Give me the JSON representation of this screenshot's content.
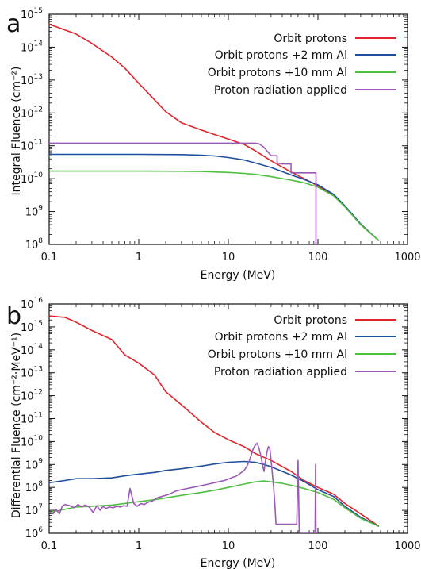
{
  "colors": {
    "orbit": "#e3242b",
    "al2": "#1f4e9c",
    "al10": "#4fbf3f",
    "applied": "#9b59b6",
    "axis": "#111111"
  },
  "panels": [
    {
      "letter": "a",
      "ylabel": "Integral Fluence (cm⁻²)",
      "xlabel": "Energy (MeV)"
    },
    {
      "letter": "b",
      "ylabel": "Differential Fluence (cm⁻²·MeV⁻¹)",
      "xlabel": "Energy (MeV)"
    }
  ],
  "chart_data": [
    {
      "type": "line",
      "xscale": "log",
      "yscale": "log",
      "xlim": [
        0.1,
        1000
      ],
      "ylim": [
        100000000.0,
        1000000000000000.0
      ],
      "xticks": [
        "0.1",
        "1",
        "10",
        "100",
        "1000"
      ],
      "yticks": [
        {
          "base": "10",
          "exp": "8"
        },
        {
          "base": "10",
          "exp": "9"
        },
        {
          "base": "10",
          "exp": "10"
        },
        {
          "base": "10",
          "exp": "11"
        },
        {
          "base": "10",
          "exp": "12"
        },
        {
          "base": "10",
          "exp": "13"
        },
        {
          "base": "10",
          "exp": "14"
        },
        {
          "base": "10",
          "exp": "15"
        }
      ],
      "xlabel": "Energy (MeV)",
      "ylabel": "Integral Fluence (cm⁻²)",
      "legend_position": "top-right",
      "series": [
        {
          "name": "Orbit protons",
          "color_key": "orbit",
          "x": [
            0.1,
            0.2,
            0.3,
            0.5,
            0.7,
            1,
            1.5,
            2,
            3,
            5,
            7,
            10,
            15,
            20,
            30,
            50,
            70,
            100,
            150,
            200,
            300,
            480
          ],
          "y": [
            500000000000000.0,
            250000000000000.0,
            130000000000000.0,
            50000000000000.0,
            23000000000000.0,
            8000000000000.0,
            2500000000000.0,
            1100000000000.0,
            500000000000.0,
            300000000000.0,
            220000000000.0,
            160000000000.0,
            110000000000.0,
            70000000000.0,
            35000000000.0,
            16000000000.0,
            10000000000.0,
            6000000000.0,
            3000000000.0,
            1400000000.0,
            400000000.0,
            130000000.0
          ]
        },
        {
          "name": "Orbit protons +2 mm Al",
          "color_key": "al2",
          "x": [
            0.1,
            1,
            3,
            5,
            7,
            10,
            15,
            20,
            30,
            50,
            70,
            100,
            150,
            200,
            300,
            480
          ],
          "y": [
            55000000000.0,
            55000000000.0,
            54000000000.0,
            52000000000.0,
            49000000000.0,
            44000000000.0,
            37000000000.0,
            30000000000.0,
            22000000000.0,
            13000000000.0,
            9500000000.0,
            6500000000.0,
            3300000000.0,
            1500000000.0,
            420000000.0,
            130000000.0
          ]
        },
        {
          "name": "Orbit protons +10 mm Al",
          "color_key": "al10",
          "x": [
            0.1,
            1,
            3,
            5,
            7,
            10,
            15,
            20,
            30,
            50,
            70,
            100,
            150,
            200,
            300,
            480
          ],
          "y": [
            17000000000.0,
            17000000000.0,
            16800000000.0,
            16500000000.0,
            16000000000.0,
            15500000000.0,
            14500000000.0,
            13500000000.0,
            11500000000.0,
            9000000000.0,
            7500000000.0,
            5500000000.0,
            3000000000.0,
            1400000000.0,
            400000000.0,
            130000000.0
          ]
        },
        {
          "name": "Proton radiation applied",
          "color_key": "applied",
          "x": [
            0.1,
            20,
            22,
            25,
            27,
            30,
            35,
            35,
            40,
            50,
            50,
            60,
            70,
            70,
            80,
            95,
            95
          ],
          "y": [
            120000000000.0,
            120000000000.0,
            115000000000.0,
            90000000000.0,
            70000000000.0,
            50000000000.0,
            50000000000.0,
            30000000000.0,
            28000000000.0,
            28000000000.0,
            15000000000.0,
            15000000000.0,
            15000000000.0,
            15000000000.0,
            15000000000.0,
            15000000000.0,
            100000000.0
          ]
        }
      ]
    },
    {
      "type": "line",
      "xscale": "log",
      "yscale": "log",
      "xlim": [
        0.1,
        1000
      ],
      "ylim": [
        1000000.0,
        1e+16
      ],
      "xticks": [
        "0.1",
        "1",
        "10",
        "100",
        "1000"
      ],
      "yticks": [
        {
          "base": "10",
          "exp": "6"
        },
        {
          "base": "10",
          "exp": "7"
        },
        {
          "base": "10",
          "exp": "8"
        },
        {
          "base": "10",
          "exp": "9"
        },
        {
          "base": "10",
          "exp": "10"
        },
        {
          "base": "10",
          "exp": "11"
        },
        {
          "base": "10",
          "exp": "12"
        },
        {
          "base": "10",
          "exp": "13"
        },
        {
          "base": "10",
          "exp": "14"
        },
        {
          "base": "10",
          "exp": "15"
        },
        {
          "base": "10",
          "exp": "16"
        }
      ],
      "xlabel": "Energy (MeV)",
      "ylabel": "Differential Fluence (cm⁻²·MeV⁻¹)",
      "legend_position": "top-right",
      "series": [
        {
          "name": "Orbit protons",
          "color_key": "orbit",
          "x": [
            0.1,
            0.15,
            0.2,
            0.3,
            0.5,
            0.7,
            1,
            1.5,
            2,
            3,
            5,
            7,
            10,
            15,
            20,
            30,
            50,
            70,
            100,
            150,
            200,
            300,
            480
          ],
          "y": [
            3000000000000000.0,
            2600000000000000.0,
            1600000000000000.0,
            700000000000000.0,
            280000000000000.0,
            60000000000000.0,
            26000000000000.0,
            8000000000000.0,
            1500000000000.0,
            400000000000.0,
            70000000000.0,
            25000000000.0,
            12000000000.0,
            6000000000.0,
            3000000000.0,
            1500000000.0,
            500000000.0,
            200000000.0,
            100000000.0,
            50000000.0,
            20000000.0,
            7000000.0,
            2000000.0
          ]
        },
        {
          "name": "Orbit protons +2 mm Al",
          "color_key": "al2",
          "x": [
            0.1,
            0.15,
            0.2,
            0.3,
            0.5,
            0.7,
            1,
            1.5,
            2,
            3,
            5,
            7,
            10,
            15,
            20,
            25,
            30,
            40,
            50,
            70,
            100,
            150,
            200,
            300,
            480
          ],
          "y": [
            160000000.0,
            200000000.0,
            240000000.0,
            240000000.0,
            260000000.0,
            320000000.0,
            380000000.0,
            450000000.0,
            550000000.0,
            650000000.0,
            850000000.0,
            1050000000.0,
            1250000000.0,
            1350000000.0,
            1250000000.0,
            1000000000.0,
            800000000.0,
            500000000.0,
            350000000.0,
            180000000.0,
            80000000.0,
            40000000.0,
            15000000.0,
            5000000.0,
            2000000.0
          ]
        },
        {
          "name": "Orbit protons +10 mm Al",
          "color_key": "al10",
          "x": [
            0.1,
            0.2,
            0.3,
            0.5,
            0.7,
            1,
            1.5,
            2,
            3,
            5,
            7,
            10,
            15,
            20,
            25,
            30,
            40,
            50,
            70,
            100,
            150,
            200,
            300,
            480
          ],
          "y": [
            8000000.0,
            14000000.0,
            15000000.0,
            17000000.0,
            20000000.0,
            24000000.0,
            29000000.0,
            35000000.0,
            45000000.0,
            60000000.0,
            75000000.0,
            100000000.0,
            140000000.0,
            175000000.0,
            190000000.0,
            175000000.0,
            150000000.0,
            125000000.0,
            90000000.0,
            60000000.0,
            30000000.0,
            13000000.0,
            4500000.0,
            2000000.0
          ]
        },
        {
          "name": "Proton radiation applied",
          "color_key": "applied",
          "x": [
            0.1,
            0.11,
            0.12,
            0.13,
            0.14,
            0.15,
            0.17,
            0.19,
            0.21,
            0.23,
            0.25,
            0.28,
            0.31,
            0.34,
            0.37,
            0.4,
            0.43,
            0.47,
            0.52,
            0.57,
            0.62,
            0.68,
            0.74,
            0.8,
            0.88,
            0.96,
            1.05,
            1.15,
            1.25,
            1.4,
            1.6,
            1.8,
            2,
            2.3,
            2.6,
            3,
            3.5,
            4,
            5,
            6,
            7,
            8,
            9,
            10,
            11,
            12,
            13,
            14,
            15,
            16,
            17,
            18,
            19,
            20,
            21,
            22,
            23,
            24,
            25,
            26,
            27,
            28,
            29,
            30,
            31,
            32,
            33,
            34,
            35,
            36,
            38,
            40,
            42,
            44,
            46,
            48,
            50,
            52,
            54,
            56,
            58,
            60,
            62,
            64,
            66,
            68,
            70,
            90,
            91,
            92,
            93,
            94,
            95,
            96,
            97,
            98,
            99,
            100
          ],
          "y": [
            8000000.0,
            7000000.0,
            11000000.0,
            7000000.0,
            15000000.0,
            18000000.0,
            16000000.0,
            13000000.0,
            18000000.0,
            14000000.0,
            17000000.0,
            14000000.0,
            8000000.0,
            16000000.0,
            10000000.0,
            15000000.0,
            12000000.0,
            14000000.0,
            13000000.0,
            15000000.0,
            14000000.0,
            16000000.0,
            15000000.0,
            90000000.0,
            20000000.0,
            15000000.0,
            20000000.0,
            18000000.0,
            22000000.0,
            25000000.0,
            35000000.0,
            40000000.0,
            45000000.0,
            55000000.0,
            70000000.0,
            80000000.0,
            90000000.0,
            100000000.0,
            120000000.0,
            140000000.0,
            160000000.0,
            180000000.0,
            200000000.0,
            230000000.0,
            270000000.0,
            300000000.0,
            360000000.0,
            450000000.0,
            550000000.0,
            800000000.0,
            1300000000.0,
            2500000000.0,
            5000000000.0,
            7000000000.0,
            8500000000.0,
            5000000000.0,
            2500000000.0,
            1000000000.0,
            500000000.0,
            1500000000.0,
            3500000000.0,
            6000000000.0,
            5000000000.0,
            1500000000.0,
            400000000.0,
            100000000.0,
            20000000.0,
            2500000.0,
            2500000.0,
            2500000.0,
            2500000.0,
            2500000.0,
            2500000.0,
            2500000.0,
            2500000.0,
            2500000.0,
            2500000.0,
            2500000.0,
            2500000.0,
            2500000.0,
            2500000.0,
            1500000000.0,
            1000000.0,
            1000000.0,
            1000000.0,
            1000000.0,
            1000000.0,
            1000000.0,
            1000000.0,
            1000000.0,
            1000000.0,
            1000000000.0,
            1000000.0,
            1000000.0,
            1000000.0,
            1000000.0,
            1000000.0,
            1000000.0
          ]
        }
      ]
    }
  ]
}
